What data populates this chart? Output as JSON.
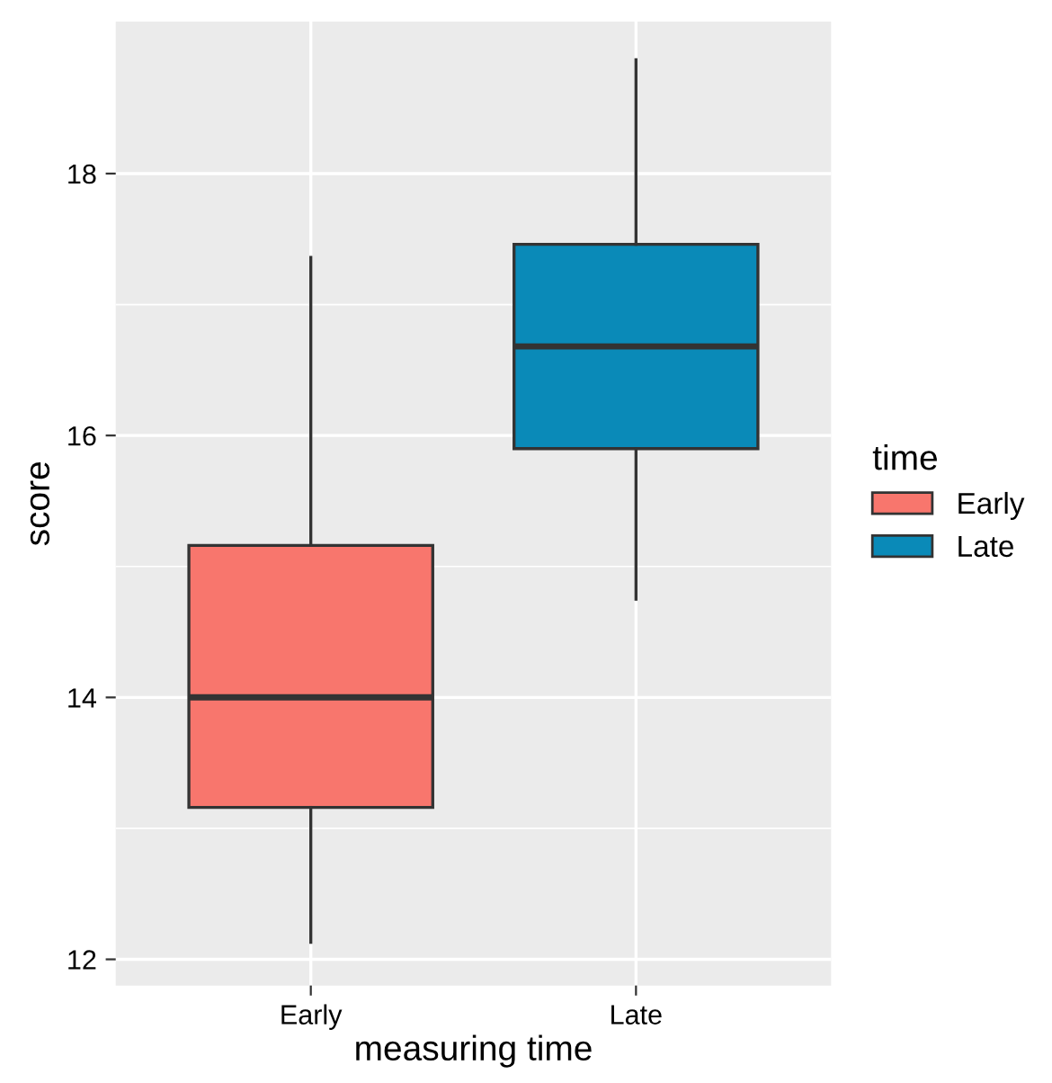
{
  "chart_data": {
    "type": "box",
    "xlabel": "measuring time",
    "ylabel": "score",
    "legend_title": "time",
    "categories": [
      "Early",
      "Late"
    ],
    "series": [
      {
        "name": "Early",
        "color": "#f8766d",
        "boxes": [
          {
            "low": 12.13,
            "q1": 13.16,
            "median": 14.0,
            "q3": 15.16,
            "high": 17.36
          },
          null
        ]
      },
      {
        "name": "Late",
        "color": "#0a8ab8",
        "boxes": [
          null,
          {
            "low": 14.75,
            "q1": 15.9,
            "median": 16.68,
            "q3": 17.46,
            "high": 18.87
          }
        ]
      }
    ],
    "ylim": [
      11.8,
      19.16
    ],
    "yticks": [
      12,
      14,
      16,
      18
    ],
    "grid": true,
    "legend": "right"
  }
}
